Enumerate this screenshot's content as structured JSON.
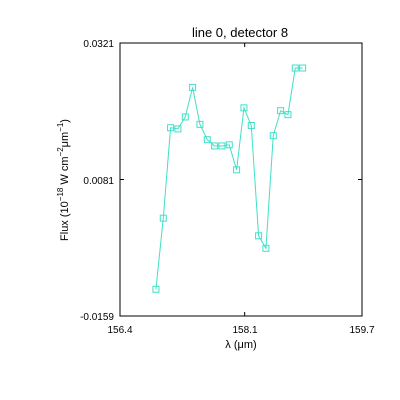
{
  "chart_data": {
    "type": "line",
    "title": "line 0, detector 8",
    "xlabel": "λ (μm)",
    "ylabel_parts": {
      "pre": "Flux (10",
      "exp1": "−18",
      "mid": " W cm",
      "exp2": "−2",
      "mu": "μm",
      "exp3": "−1",
      "post": ")"
    },
    "xlim": [
      156.4,
      159.7
    ],
    "ylim": [
      -0.0159,
      0.0321
    ],
    "x_tick_labels": [
      "156.4",
      "158.1",
      "159.7"
    ],
    "y_tick_labels": [
      "0.0321",
      "0.0081",
      "-0.0159"
    ],
    "x_ticks": [
      156.4,
      158.1,
      159.7
    ],
    "y_ticks": [
      0.0321,
      0.0081,
      -0.0159
    ],
    "color": "#40e0c8",
    "marker": "square",
    "series": [
      {
        "x": [
          156.89,
          156.99,
          157.09,
          157.19,
          157.29,
          157.39,
          157.49,
          157.59,
          157.69,
          157.79,
          157.89,
          157.99,
          158.09,
          158.19,
          158.29,
          158.39,
          158.49,
          158.59,
          158.69,
          158.79,
          158.89
        ],
        "y": [
          -0.0112,
          0.0013,
          0.0172,
          0.017,
          0.0191,
          0.0243,
          0.0178,
          0.0151,
          0.014,
          0.014,
          0.0142,
          0.0098,
          0.0207,
          0.0176,
          -0.0018,
          -0.004,
          0.0158,
          0.0202,
          0.0195,
          0.0277,
          0.0277
        ]
      }
    ]
  }
}
